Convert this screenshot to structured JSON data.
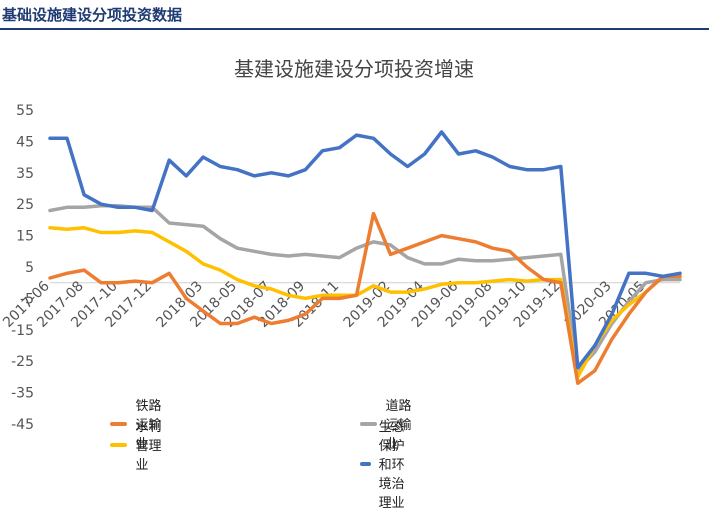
{
  "header": {
    "title": "基础设施建设分项投资数据"
  },
  "colors": {
    "header": "#1f3b73",
    "railway": "#ed7d31",
    "road": "#a5a5a5",
    "water": "#ffc000",
    "eco": "#4472c4"
  },
  "chart_data": {
    "type": "line",
    "title": "基建设施建设分项投资增速",
    "ylim": [
      -45,
      55
    ],
    "yticks": [
      -45,
      -35,
      -25,
      -15,
      -5,
      5,
      15,
      25,
      35,
      45,
      55
    ],
    "x_labels": [
      "2017-06",
      "2017-08",
      "2017-10",
      "2017-12",
      "2018-03",
      "2018-05",
      "2018-07",
      "2018-09",
      "2018-11",
      "2019-02",
      "2019-04",
      "2019-06",
      "2019-08",
      "2019-10",
      "2019-12",
      "2020-03",
      "2020-05"
    ],
    "x": [
      "2017-06",
      "2017-07",
      "2017-08",
      "2017-09",
      "2017-10",
      "2017-11",
      "2017-12",
      "2018-01",
      "2018-02",
      "2018-03",
      "2018-04",
      "2018-05",
      "2018-06",
      "2018-07",
      "2018-08",
      "2018-09",
      "2018-10",
      "2018-11",
      "2018-12",
      "2019-01",
      "2019-02",
      "2019-03",
      "2019-04",
      "2019-05",
      "2019-06",
      "2019-07",
      "2019-08",
      "2019-09",
      "2019-10",
      "2019-11",
      "2019-12",
      "2020-01",
      "2020-02",
      "2020-03",
      "2020-04",
      "2020-05",
      "2020-06",
      "2020-07"
    ],
    "grid": false,
    "legend_position": "bottom",
    "series": [
      {
        "name": "铁路运输业",
        "color": "#ed7d31",
        "values": [
          1.5,
          3,
          4,
          0,
          0,
          0.5,
          0,
          3,
          -5,
          -9,
          -13,
          -13,
          -11,
          -13,
          -12,
          -10,
          -5,
          -5,
          -4,
          22,
          9,
          11,
          13,
          15,
          14,
          13,
          11,
          10,
          5,
          1,
          0,
          -32,
          -28,
          -18,
          -10,
          -3,
          2,
          2
        ]
      },
      {
        "name": "道路运输业",
        "color": "#a5a5a5",
        "values": [
          23,
          24,
          24,
          24.5,
          24.5,
          24,
          24,
          19,
          18.5,
          18,
          14,
          11,
          10,
          9,
          8.5,
          9,
          8.5,
          8,
          11,
          13,
          12,
          8,
          6,
          6,
          7.5,
          7,
          7,
          7.5,
          8,
          8.5,
          9,
          -28,
          -22,
          -13,
          -6,
          0,
          1,
          1
        ]
      },
      {
        "name": "水利管理业",
        "color": "#ffc000",
        "values": [
          17.5,
          17,
          17.5,
          16,
          16,
          16.5,
          16,
          13,
          10,
          6,
          4,
          1,
          -1,
          -2,
          -4,
          -5,
          -4,
          -4,
          -4,
          -1,
          -3,
          -3,
          -2,
          -0.5,
          0,
          0,
          0.5,
          1,
          0.5,
          1,
          1,
          -30,
          -20,
          -12,
          -7,
          -3,
          2,
          2
        ]
      },
      {
        "name": "生态保护和环境治理业",
        "color": "#4472c4",
        "values": [
          46,
          46,
          28,
          25,
          24,
          24,
          23,
          39,
          34,
          40,
          37,
          36,
          34,
          35,
          34,
          36,
          42,
          43,
          47,
          46,
          41,
          37,
          41,
          48,
          41,
          42,
          40,
          37,
          36,
          36,
          37,
          -27,
          -20,
          -10,
          3,
          3,
          2,
          3
        ]
      }
    ]
  }
}
